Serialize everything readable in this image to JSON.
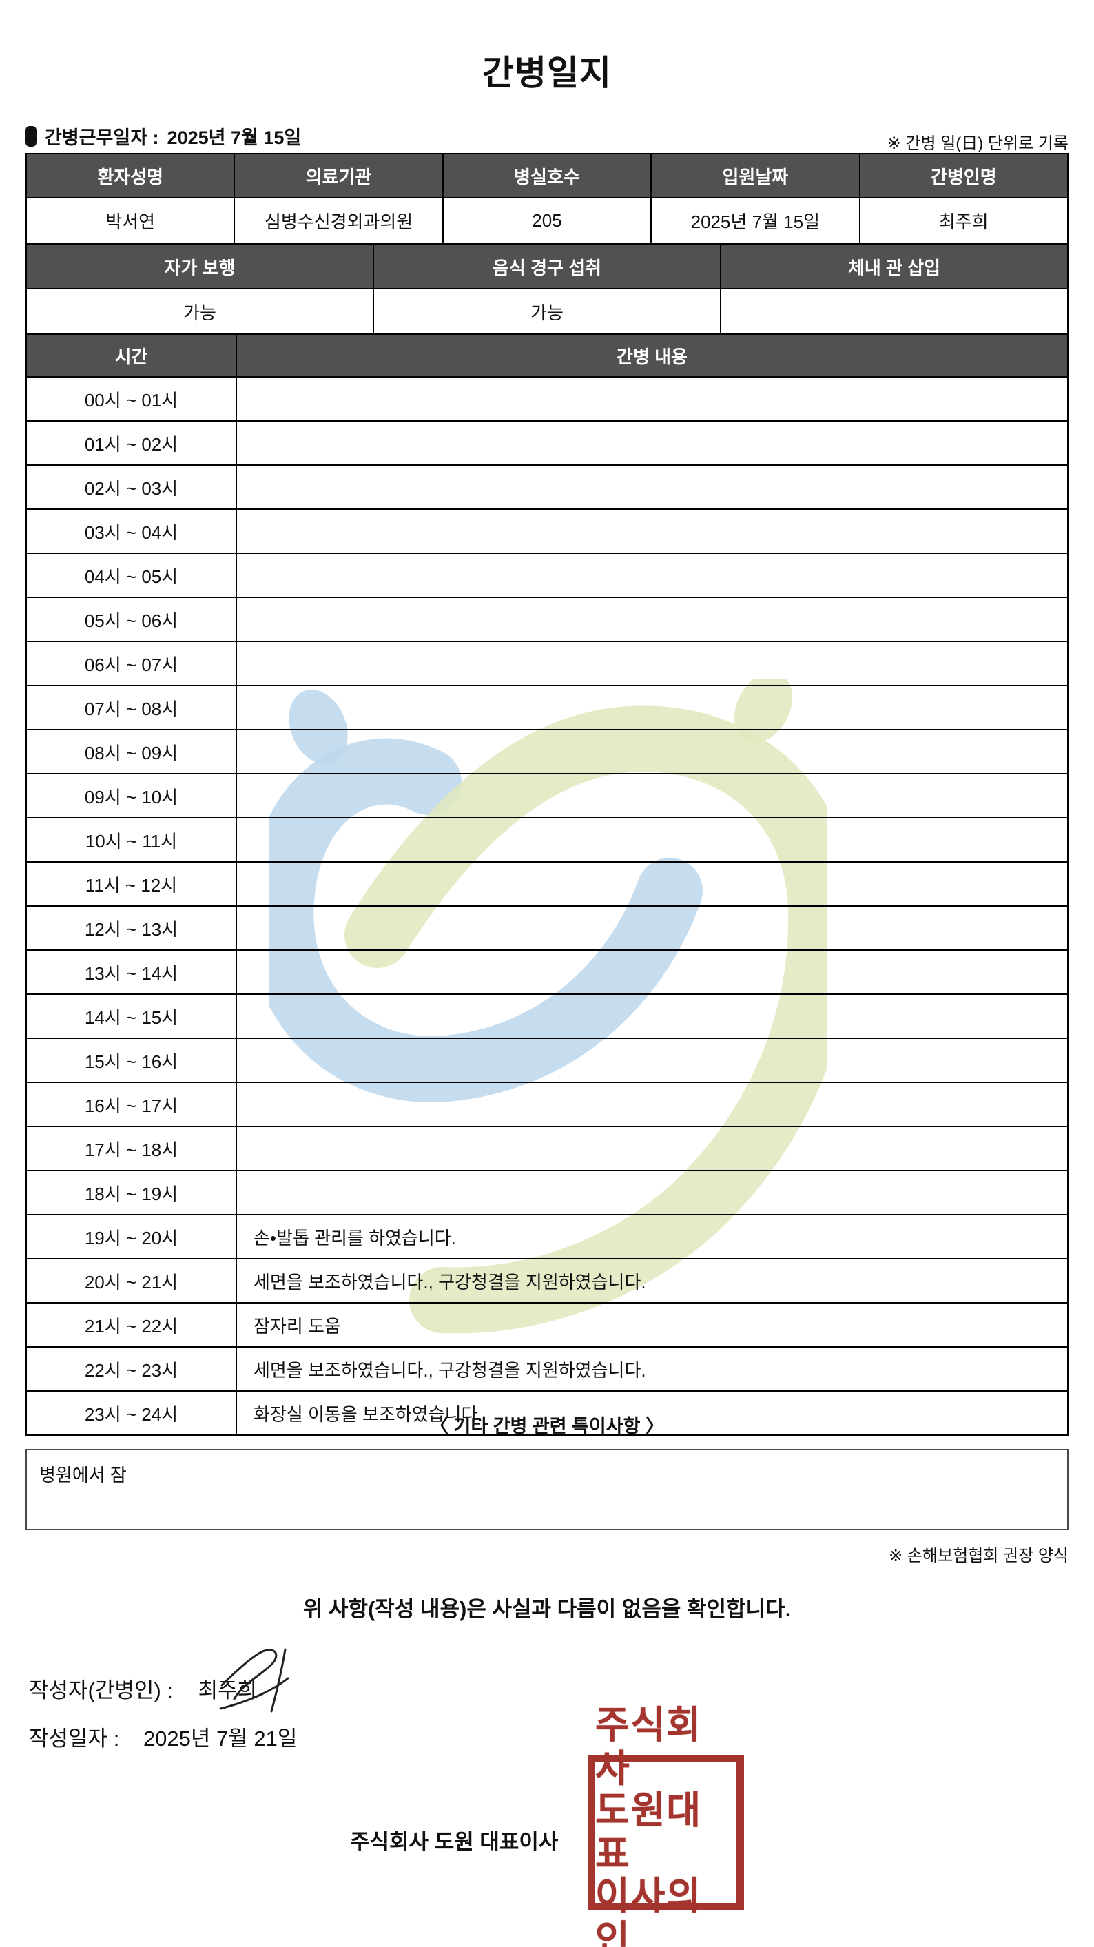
{
  "title": "간병일지",
  "meta": {
    "work_date_label": "간병근무일자  :",
    "work_date": "2025년 7월 15일",
    "unit_note": "※ 간병 일(日) 단위로 기록"
  },
  "patient_table": {
    "headers": [
      "환자성명",
      "의료기관",
      "병실호수",
      "입원날짜",
      "간병인명"
    ],
    "values": [
      "박서연",
      "심병수신경외과의원",
      "205",
      "2025년 7월 15일",
      "최주희"
    ]
  },
  "status_table": {
    "headers": [
      "자가 보행",
      "음식 경구 섭취",
      "체내 관 삽입"
    ],
    "values": [
      "가능",
      "가능",
      ""
    ]
  },
  "log_table": {
    "time_header": "시간",
    "content_header": "간병 내용",
    "rows": [
      {
        "time": "00시 ~ 01시",
        "content": ""
      },
      {
        "time": "01시 ~ 02시",
        "content": ""
      },
      {
        "time": "02시 ~ 03시",
        "content": ""
      },
      {
        "time": "03시 ~ 04시",
        "content": ""
      },
      {
        "time": "04시 ~ 05시",
        "content": ""
      },
      {
        "time": "05시 ~ 06시",
        "content": ""
      },
      {
        "time": "06시 ~ 07시",
        "content": ""
      },
      {
        "time": "07시 ~ 08시",
        "content": ""
      },
      {
        "time": "08시 ~ 09시",
        "content": ""
      },
      {
        "time": "09시 ~ 10시",
        "content": ""
      },
      {
        "time": "10시 ~ 11시",
        "content": ""
      },
      {
        "time": "11시 ~ 12시",
        "content": ""
      },
      {
        "time": "12시 ~ 13시",
        "content": ""
      },
      {
        "time": "13시 ~ 14시",
        "content": ""
      },
      {
        "time": "14시 ~ 15시",
        "content": ""
      },
      {
        "time": "15시 ~ 16시",
        "content": ""
      },
      {
        "time": "16시 ~ 17시",
        "content": ""
      },
      {
        "time": "17시 ~ 18시",
        "content": ""
      },
      {
        "time": "18시 ~ 19시",
        "content": ""
      },
      {
        "time": "19시 ~ 20시",
        "content": "손•발톱 관리를 하였습니다."
      },
      {
        "time": "20시 ~ 21시",
        "content": "세면을 보조하였습니다., 구강청결을 지원하였습니다."
      },
      {
        "time": "21시 ~ 22시",
        "content": "잠자리 도움"
      },
      {
        "time": "22시 ~ 23시",
        "content": "세면을 보조하였습니다., 구강청결을 지원하였습니다."
      },
      {
        "time": "23시 ~ 24시",
        "content": "화장실 이동을 보조하였습니다."
      }
    ]
  },
  "notes": {
    "section_title": "〈 기타 간병 관련 특이사항 〉",
    "content": "병원에서 잠",
    "form_note": "※ 손해보험협회 권장 양식"
  },
  "confirmation": "위 사항(작성 내용)은 사실과 다름이 없음을 확인합니다.",
  "signature": {
    "writer_label": "작성자(간병인) :",
    "writer_name": "최주희",
    "date_label": "작성일자 :",
    "date_value": "2025년 7월 21일",
    "company": "주식회사 도원    대표이사",
    "stamp_lines": [
      "주식회사",
      "도원대표",
      "이사의인"
    ]
  },
  "colors": {
    "header_bg": "#515151",
    "stamp_red": "#a3352e",
    "watermark_blue": "#bcd7ec",
    "watermark_green": "#dfe9bd"
  }
}
